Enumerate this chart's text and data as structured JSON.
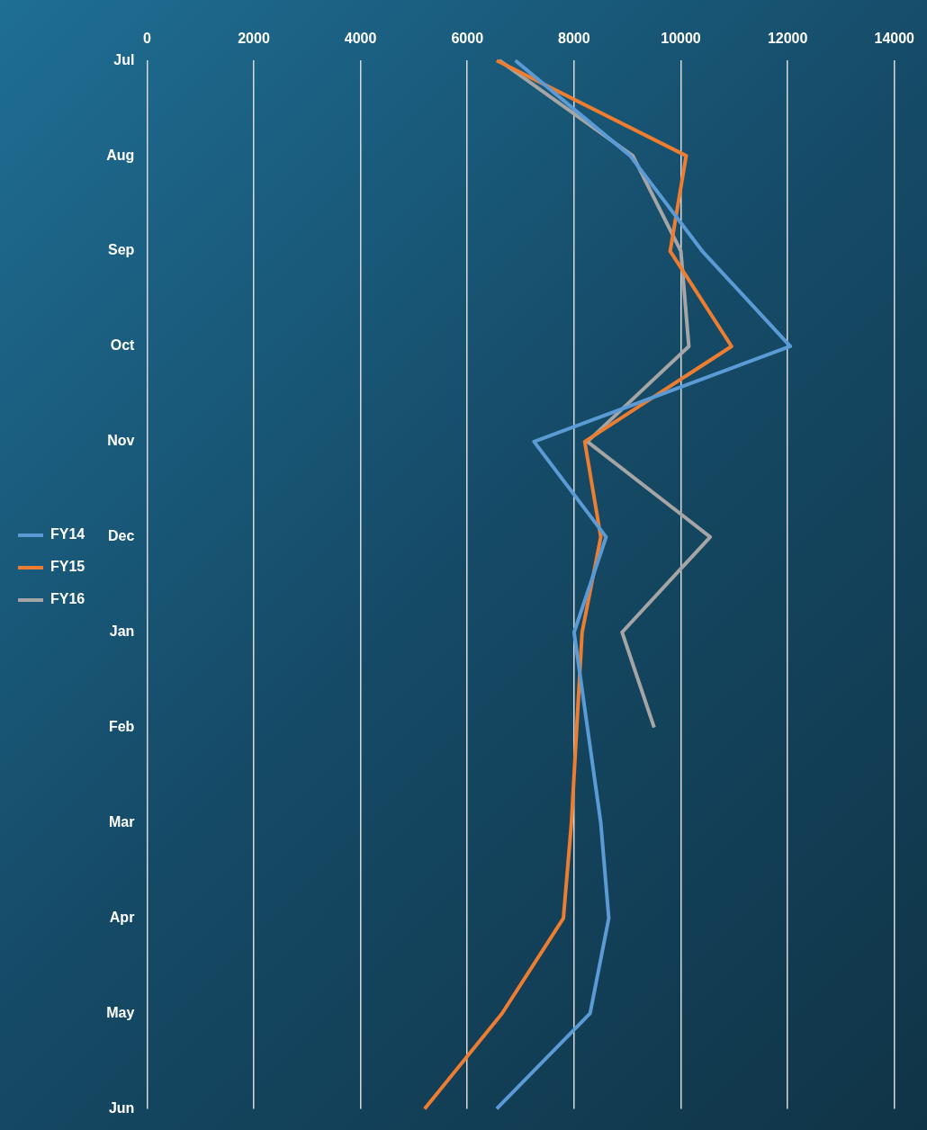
{
  "chart_data": {
    "type": "line",
    "orientation": "horizontal",
    "categories": [
      "Jul",
      "Aug",
      "Sep",
      "Oct",
      "Nov",
      "Dec",
      "Jan",
      "Feb",
      "Mar",
      "Apr",
      "May",
      "Jun"
    ],
    "series": [
      {
        "name": "FY14",
        "color": "#5b9bd5",
        "values": [
          6900,
          9050,
          10400,
          12050,
          7250,
          8600,
          8000,
          8250,
          8500,
          8650,
          8300,
          6550
        ]
      },
      {
        "name": "FY15",
        "color": "#ed7d31",
        "values": [
          6550,
          10100,
          9800,
          10950,
          8200,
          8500,
          8150,
          8050,
          7950,
          7800,
          6650,
          5200
        ]
      },
      {
        "name": "FY16",
        "color": "#a5a5a5",
        "values": [
          6600,
          9100,
          10000,
          10150,
          8250,
          10550,
          8900,
          9500,
          null,
          null,
          null,
          null
        ]
      }
    ],
    "xlim": [
      0,
      14000
    ],
    "xticks": [
      0,
      2000,
      4000,
      6000,
      8000,
      10000,
      12000,
      14000
    ],
    "grid": "x",
    "legend": "left",
    "marker": "none",
    "line_style": "solid"
  }
}
